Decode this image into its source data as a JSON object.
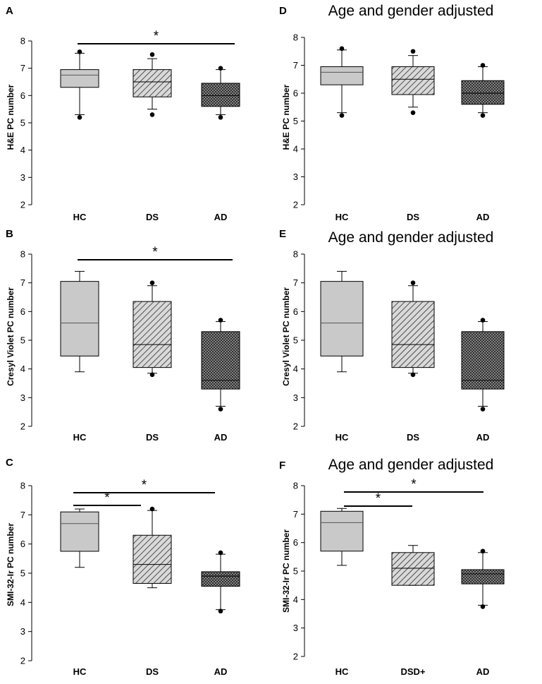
{
  "colors": {
    "hc_fill": "#c9c9c9",
    "ds_fill": "#b5b5b5",
    "ad_fill": "#8c8c8c",
    "stroke": "#000000"
  },
  "chart_data": [
    {
      "panel": "A",
      "type": "box",
      "title": "",
      "ylabel": "H&E PC number",
      "ylim": [
        2,
        8
      ],
      "yticks": [
        2,
        3,
        4,
        5,
        6,
        7,
        8
      ],
      "categories": [
        "HC",
        "DS",
        "AD"
      ],
      "boxes": [
        {
          "category": "HC",
          "whisker_low": 5.3,
          "q1": 6.3,
          "median": 6.75,
          "q3": 6.95,
          "whisker_high": 7.55,
          "outliers": [
            5.2,
            7.6
          ]
        },
        {
          "category": "DS",
          "whisker_low": 5.5,
          "q1": 5.95,
          "median": 6.5,
          "q3": 6.95,
          "whisker_high": 7.35,
          "outliers": [
            5.3,
            7.5
          ]
        },
        {
          "category": "AD",
          "whisker_low": 5.3,
          "q1": 5.6,
          "median": 6.0,
          "q3": 6.45,
          "whisker_high": 6.95,
          "outliers": [
            5.2,
            7.0
          ]
        }
      ],
      "significance": [
        {
          "from": "HC",
          "to": "AD",
          "label": "*"
        }
      ]
    },
    {
      "panel": "B",
      "type": "box",
      "title": "",
      "ylabel": "Cresyl Violet PC number",
      "ylim": [
        2,
        8
      ],
      "yticks": [
        2,
        3,
        4,
        5,
        6,
        7,
        8
      ],
      "categories": [
        "HC",
        "DS",
        "AD"
      ],
      "boxes": [
        {
          "category": "HC",
          "whisker_low": 3.9,
          "q1": 4.45,
          "median": 5.6,
          "q3": 7.05,
          "whisker_high": 7.4,
          "outliers": []
        },
        {
          "category": "DS",
          "whisker_low": 3.85,
          "q1": 4.05,
          "median": 4.85,
          "q3": 6.35,
          "whisker_high": 6.9,
          "outliers": [
            3.8,
            7.0
          ]
        },
        {
          "category": "AD",
          "whisker_low": 2.7,
          "q1": 3.3,
          "median": 3.6,
          "q3": 5.3,
          "whisker_high": 5.65,
          "outliers": [
            2.6,
            5.7
          ]
        }
      ],
      "significance": [
        {
          "from": "HC",
          "to": "AD",
          "label": "*"
        }
      ]
    },
    {
      "panel": "C",
      "type": "box",
      "title": "",
      "ylabel": "SMI-32-Ir PC number",
      "ylim": [
        2,
        8
      ],
      "yticks": [
        2,
        3,
        4,
        5,
        6,
        7,
        8
      ],
      "categories": [
        "HC",
        "DS",
        "AD"
      ],
      "boxes": [
        {
          "category": "HC",
          "whisker_low": 5.2,
          "q1": 5.75,
          "median": 6.7,
          "q3": 7.1,
          "whisker_high": 7.2,
          "outliers": []
        },
        {
          "category": "DS",
          "whisker_low": 4.5,
          "q1": 4.65,
          "median": 5.3,
          "q3": 6.3,
          "whisker_high": 7.15,
          "outliers": [
            7.2
          ]
        },
        {
          "category": "AD",
          "whisker_low": 3.75,
          "q1": 4.55,
          "median": 4.9,
          "q3": 5.05,
          "whisker_high": 5.65,
          "outliers": [
            3.7,
            5.7
          ]
        }
      ],
      "significance": [
        {
          "from": "HC",
          "to": "DS",
          "label": "*"
        },
        {
          "from": "HC",
          "to": "AD",
          "label": "*"
        }
      ]
    },
    {
      "panel": "D",
      "type": "box",
      "title": "Age and gender adjusted",
      "ylabel": "H&E PC number",
      "ylim": [
        2,
        8
      ],
      "yticks": [
        2,
        3,
        4,
        5,
        6,
        7,
        8
      ],
      "categories": [
        "HC",
        "DS",
        "AD"
      ],
      "boxes": [
        {
          "category": "HC",
          "whisker_low": 5.3,
          "q1": 6.3,
          "median": 6.75,
          "q3": 6.95,
          "whisker_high": 7.55,
          "outliers": [
            5.2,
            7.6
          ]
        },
        {
          "category": "DS",
          "whisker_low": 5.5,
          "q1": 5.95,
          "median": 6.5,
          "q3": 6.95,
          "whisker_high": 7.35,
          "outliers": [
            5.3,
            7.5
          ]
        },
        {
          "category": "AD",
          "whisker_low": 5.3,
          "q1": 5.6,
          "median": 6.0,
          "q3": 6.45,
          "whisker_high": 6.95,
          "outliers": [
            5.2,
            7.0
          ]
        }
      ],
      "significance": []
    },
    {
      "panel": "E",
      "type": "box",
      "title": "Age and gender adjusted",
      "ylabel": "Cresyl Violet PC number",
      "ylim": [
        2,
        8
      ],
      "yticks": [
        2,
        3,
        4,
        5,
        6,
        7,
        8
      ],
      "categories": [
        "HC",
        "DS",
        "AD"
      ],
      "boxes": [
        {
          "category": "HC",
          "whisker_low": 3.9,
          "q1": 4.45,
          "median": 5.6,
          "q3": 7.05,
          "whisker_high": 7.4,
          "outliers": []
        },
        {
          "category": "DS",
          "whisker_low": 3.85,
          "q1": 4.05,
          "median": 4.85,
          "q3": 6.35,
          "whisker_high": 6.9,
          "outliers": [
            3.8,
            7.0
          ]
        },
        {
          "category": "AD",
          "whisker_low": 2.7,
          "q1": 3.3,
          "median": 3.6,
          "q3": 5.3,
          "whisker_high": 5.65,
          "outliers": [
            2.6,
            5.7
          ]
        }
      ],
      "significance": []
    },
    {
      "panel": "F",
      "type": "box",
      "title": "Age and gender adjusted",
      "ylabel": "SMI-32-Ir PC number",
      "ylim": [
        2,
        8
      ],
      "yticks": [
        2,
        3,
        4,
        5,
        6,
        7,
        8
      ],
      "categories": [
        "HC",
        "DSD+",
        "AD"
      ],
      "boxes": [
        {
          "category": "HC",
          "whisker_low": 5.2,
          "q1": 5.7,
          "median": 6.7,
          "q3": 7.1,
          "whisker_high": 7.2,
          "outliers": []
        },
        {
          "category": "DSD+",
          "whisker_low": 4.5,
          "q1": 4.5,
          "median": 5.1,
          "q3": 5.65,
          "whisker_high": 5.9,
          "outliers": []
        },
        {
          "category": "AD",
          "whisker_low": 3.8,
          "q1": 4.55,
          "median": 4.9,
          "q3": 5.05,
          "whisker_high": 5.65,
          "outliers": [
            3.75,
            5.7
          ]
        }
      ],
      "significance": [
        {
          "from": "HC",
          "to": "DSD+",
          "label": "*"
        },
        {
          "from": "HC",
          "to": "AD",
          "label": "*"
        }
      ]
    }
  ]
}
